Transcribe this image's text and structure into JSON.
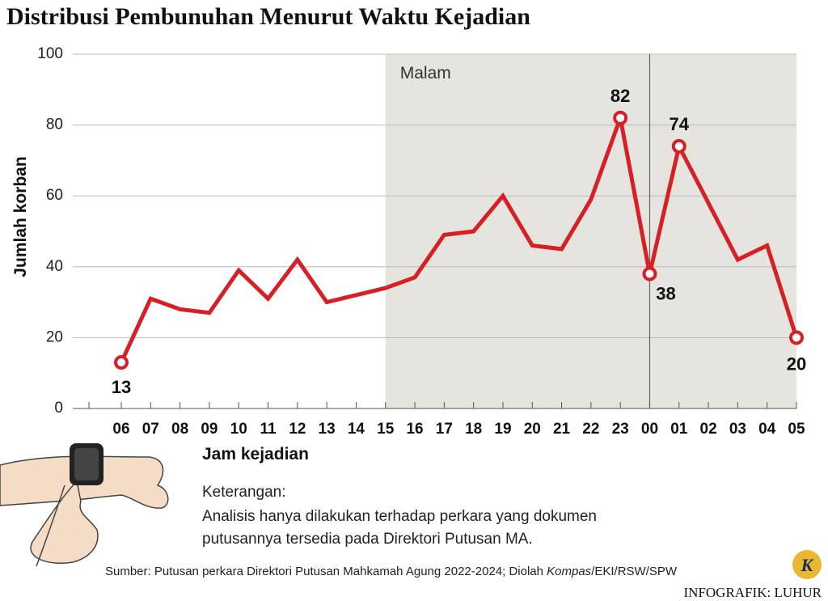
{
  "chart_data": {
    "type": "line",
    "title": "Distribusi Pembunuhan Menurut Waktu Kejadian",
    "categories": [
      "06",
      "07",
      "08",
      "09",
      "10",
      "11",
      "12",
      "13",
      "14",
      "15",
      "16",
      "17",
      "18",
      "19",
      "20",
      "21",
      "22",
      "23",
      "00",
      "01",
      "02",
      "03",
      "04",
      "05"
    ],
    "series": [
      {
        "name": "Jumlah korban",
        "color": "#d71f26",
        "values": [
          13,
          31,
          28,
          27,
          39,
          31,
          42,
          30,
          32,
          34,
          37,
          49,
          50,
          60,
          46,
          45,
          59,
          82,
          38,
          74,
          58,
          42,
          46,
          20
        ]
      }
    ],
    "ylim": [
      0,
      100
    ],
    "yticks": [
      0,
      20,
      40,
      60,
      80,
      100
    ],
    "grid": true,
    "y_label": "Jumlah korban",
    "x_label": "Jam kejadian",
    "annotation": "Malam",
    "notes": [
      "Keterangan:",
      "Analisis hanya dilakukan terhadap perkara yang dokumen",
      "putusannya tersedia pada Direktori Putusan MA."
    ],
    "source": [
      "Sumber: Putusan perkara Direktori Putusan Mahkamah Agung 2022-2024; Diolah ",
      "Kompas",
      "/EKI/RSW/SPW"
    ],
    "credit": "INFOGRAFIK: LUHUR",
    "logo": "K"
  }
}
